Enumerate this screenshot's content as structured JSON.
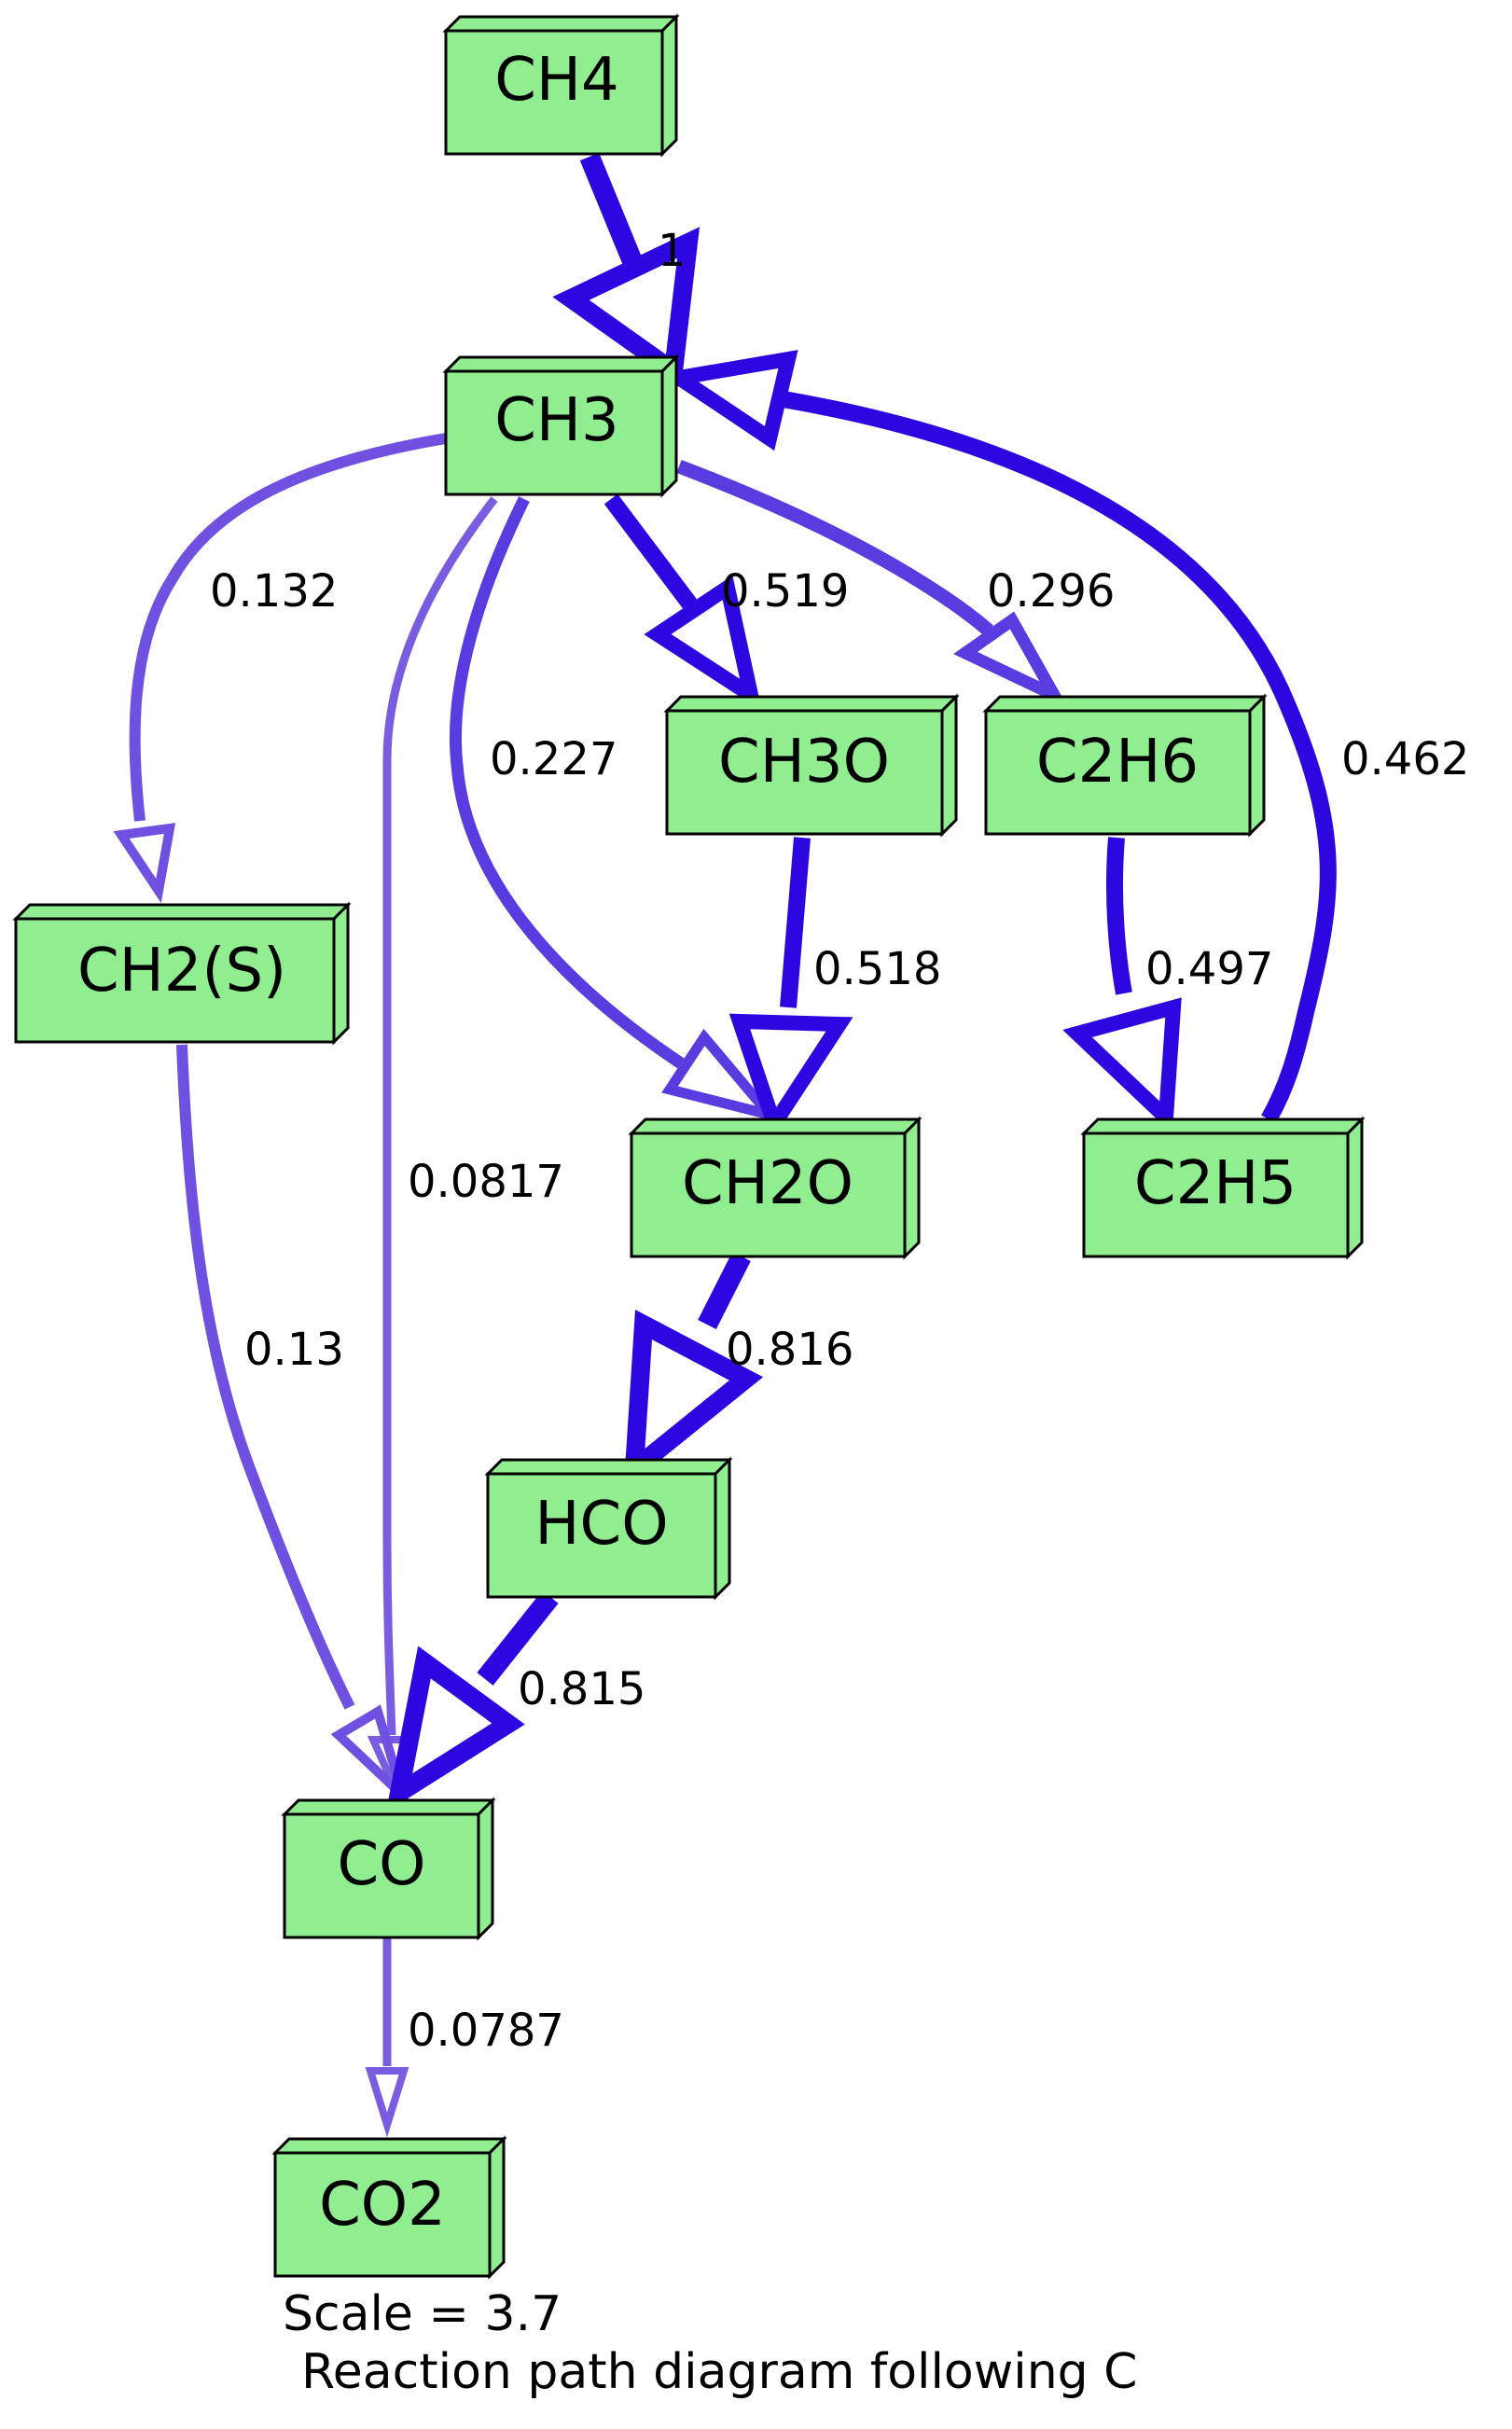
{
  "diagram": {
    "caption_scale": "Scale = 3.7",
    "caption_title": "Reaction path diagram following C",
    "colors": {
      "node_fill": "#90ee90",
      "node_stroke": "#000000",
      "strong_edge": "#2e06e0",
      "medium_edge": "#5a3be0",
      "weak_edge": "#7a5ce0"
    },
    "nodes": [
      {
        "id": "CH4",
        "label": "CH4"
      },
      {
        "id": "CH3",
        "label": "CH3"
      },
      {
        "id": "CH2S",
        "label": "CH2(S)"
      },
      {
        "id": "CH3O",
        "label": "CH3O"
      },
      {
        "id": "C2H6",
        "label": "C2H6"
      },
      {
        "id": "C2H5",
        "label": "C2H5"
      },
      {
        "id": "CH2O",
        "label": "CH2O"
      },
      {
        "id": "HCO",
        "label": "HCO"
      },
      {
        "id": "CO",
        "label": "CO"
      },
      {
        "id": "CO2",
        "label": "CO2"
      }
    ],
    "edges": [
      {
        "from": "CH4",
        "to": "CH3",
        "label": "1"
      },
      {
        "from": "CH3",
        "to": "CH2S",
        "label": "0.132"
      },
      {
        "from": "CH3",
        "to": "CH3O",
        "label": "0.519"
      },
      {
        "from": "CH3",
        "to": "C2H6",
        "label": "0.296"
      },
      {
        "from": "C2H5",
        "to": "CH3",
        "label": "0.462"
      },
      {
        "from": "CH3",
        "to": "CH2O",
        "label": "0.227"
      },
      {
        "from": "CH3",
        "to": "CO",
        "label": "0.0817"
      },
      {
        "from": "CH3O",
        "to": "CH2O",
        "label": "0.518"
      },
      {
        "from": "C2H6",
        "to": "C2H5",
        "label": "0.497"
      },
      {
        "from": "CH2S",
        "to": "CO",
        "label": "0.13"
      },
      {
        "from": "CH2O",
        "to": "HCO",
        "label": "0.816"
      },
      {
        "from": "HCO",
        "to": "CO",
        "label": "0.815"
      },
      {
        "from": "CO",
        "to": "CO2",
        "label": "0.0787"
      }
    ]
  }
}
